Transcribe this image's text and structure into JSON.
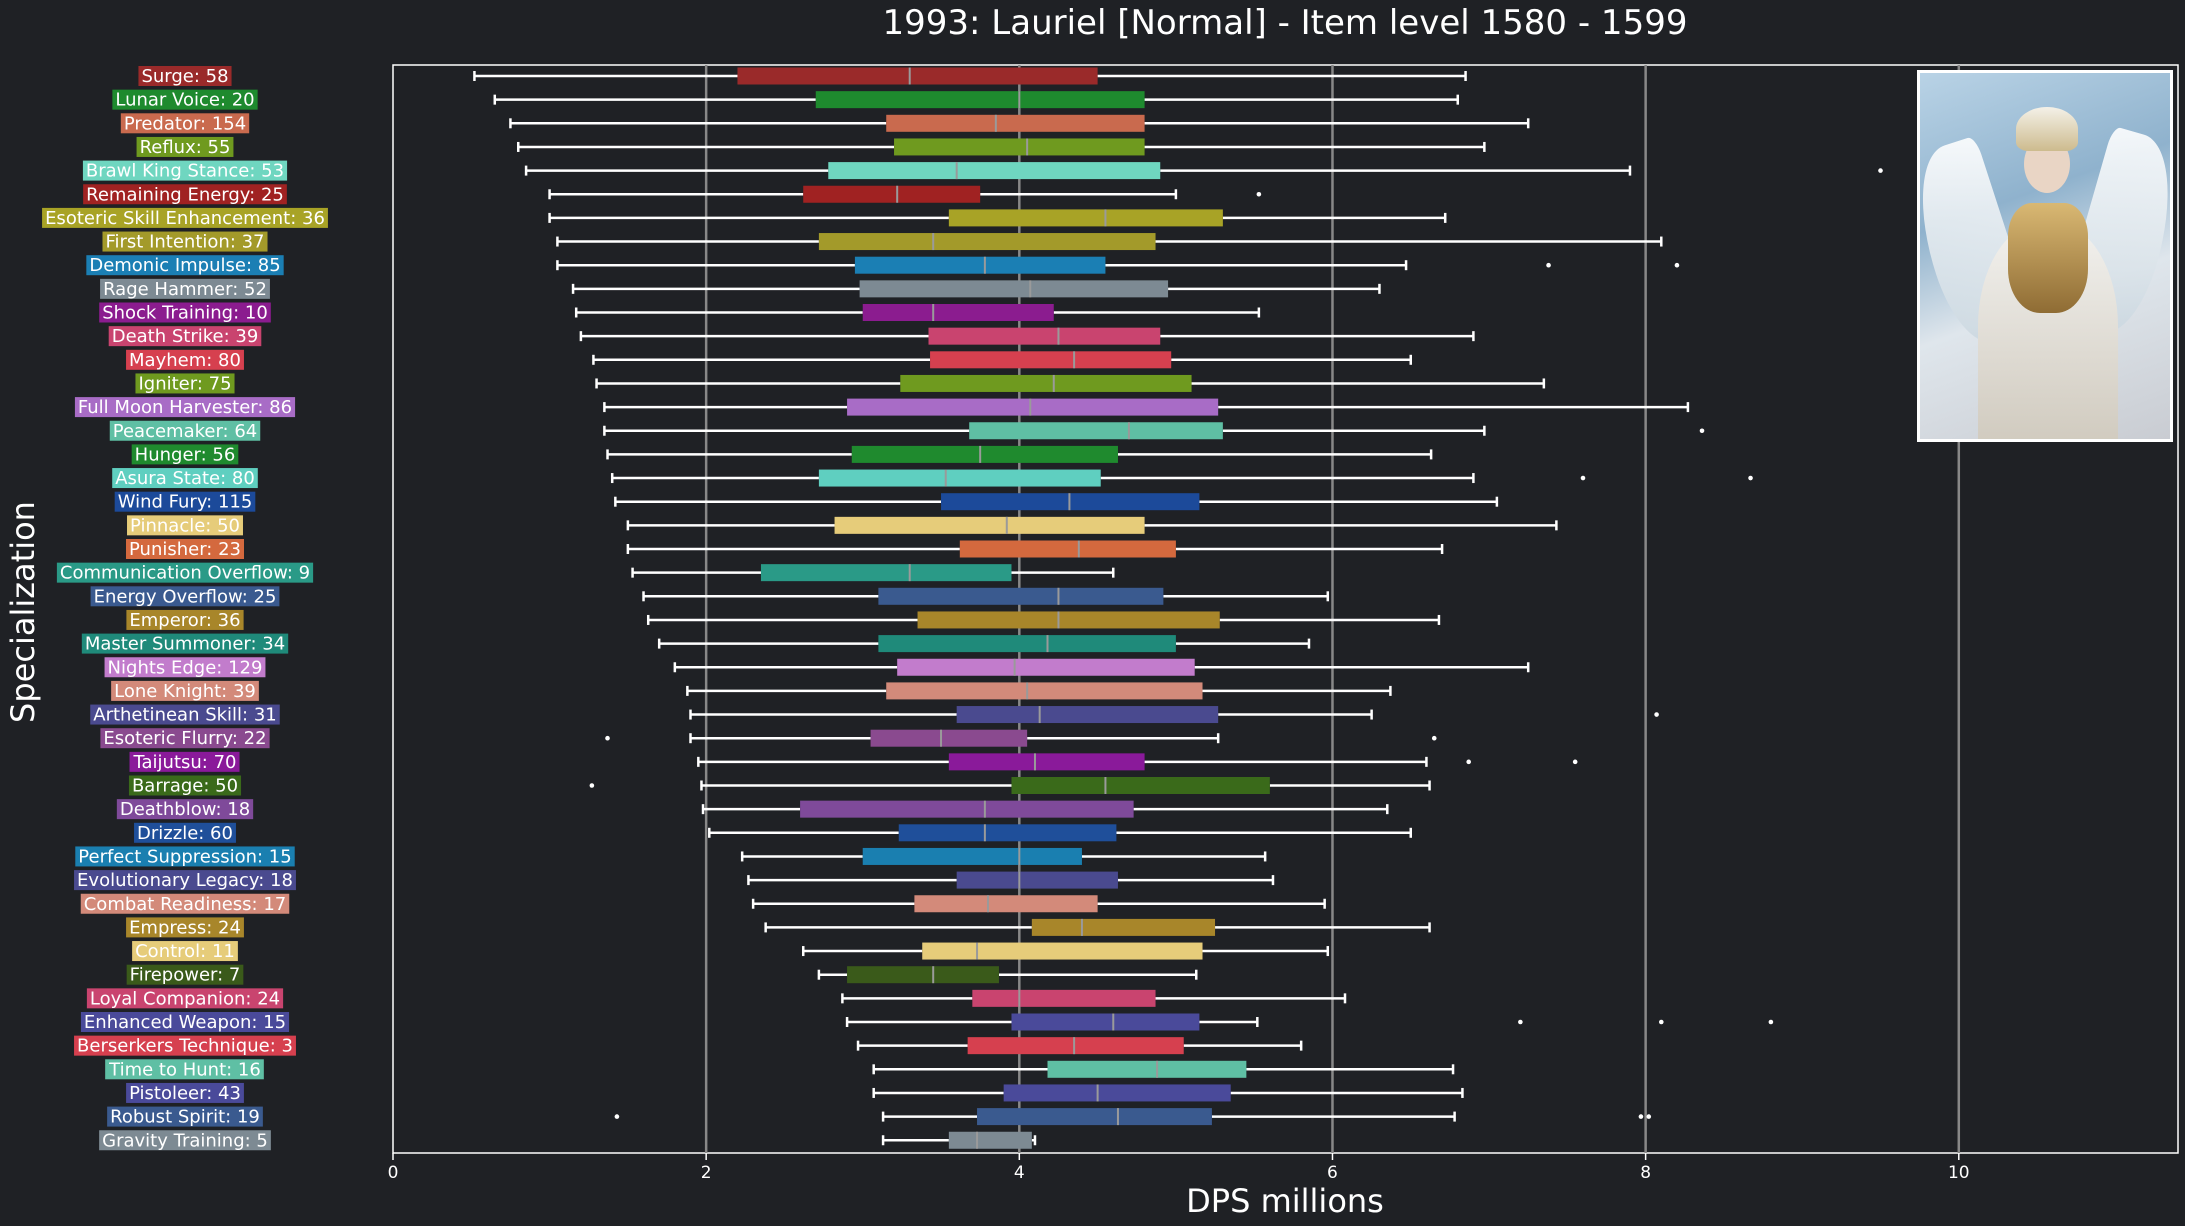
{
  "colors": {
    "background": "#1f2125",
    "axes_frame": "#ffffff",
    "text": "#ffffff",
    "whisker": "#ffffff",
    "median_line": "#9a9a9a",
    "vline": "#888888"
  },
  "chart_data": {
    "type": "box",
    "title": "1993: Lauriel [Normal] - Item level 1580 - 1599",
    "xlabel": "DPS millions",
    "ylabel": "Specialization",
    "xlim": [
      0,
      11.4
    ],
    "xticks": [
      0,
      2,
      4,
      6,
      8,
      10
    ],
    "xtick_labels": [
      "0",
      "2",
      "4",
      "6",
      "8",
      "10"
    ],
    "reference_lines": [
      2,
      4,
      6,
      8,
      10
    ],
    "grid": false,
    "image_inset": "character portrait, top-right",
    "series": [
      {
        "label": "Surge: 58",
        "color": "#9a2a2a",
        "min": 0.52,
        "q1": 2.2,
        "median": 3.3,
        "q3": 4.5,
        "max": 6.85,
        "outliers": []
      },
      {
        "label": "Lunar Voice: 20",
        "color": "#1e8a2e",
        "min": 0.65,
        "q1": 2.7,
        "median": 4.0,
        "q3": 4.8,
        "max": 6.8,
        "outliers": []
      },
      {
        "label": "Predator: 154",
        "color": "#c96a4e",
        "min": 0.75,
        "q1": 3.15,
        "median": 3.85,
        "q3": 4.8,
        "max": 7.25,
        "outliers": []
      },
      {
        "label": "Reflux: 55",
        "color": "#6f9a1f",
        "min": 0.8,
        "q1": 3.2,
        "median": 4.05,
        "q3": 4.8,
        "max": 6.97,
        "outliers": []
      },
      {
        "label": "Brawl King Stance: 53",
        "color": "#6fd6c0",
        "min": 0.85,
        "q1": 2.78,
        "median": 3.6,
        "q3": 4.9,
        "max": 7.9,
        "outliers": [
          9.5
        ]
      },
      {
        "label": "Remaining Energy: 25",
        "color": "#a02222",
        "min": 1.0,
        "q1": 2.62,
        "median": 3.22,
        "q3": 3.75,
        "max": 5.0,
        "outliers": [
          5.53
        ]
      },
      {
        "label": "Esoteric Skill Enhancement: 36",
        "color": "#a8a326",
        "min": 1.0,
        "q1": 3.55,
        "median": 4.55,
        "q3": 5.3,
        "max": 6.72,
        "outliers": []
      },
      {
        "label": "First Intention: 37",
        "color": "#a39a2a",
        "min": 1.05,
        "q1": 2.72,
        "median": 3.45,
        "q3": 4.87,
        "max": 8.1,
        "outliers": []
      },
      {
        "label": "Demonic Impulse: 85",
        "color": "#1b7fb4",
        "min": 1.05,
        "q1": 2.95,
        "median": 3.78,
        "q3": 4.55,
        "max": 6.47,
        "outliers": [
          7.38,
          8.2
        ]
      },
      {
        "label": "Rage Hammer: 52",
        "color": "#7d8a93",
        "min": 1.15,
        "q1": 2.98,
        "median": 4.07,
        "q3": 4.95,
        "max": 6.3,
        "outliers": []
      },
      {
        "label": "Shock Training: 10",
        "color": "#8b1c8f",
        "min": 1.17,
        "q1": 3.0,
        "median": 3.45,
        "q3": 4.22,
        "max": 5.53,
        "outliers": []
      },
      {
        "label": "Death Strike: 39",
        "color": "#c9446f",
        "min": 1.2,
        "q1": 3.42,
        "median": 4.25,
        "q3": 4.9,
        "max": 6.9,
        "outliers": []
      },
      {
        "label": "Mayhem: 80",
        "color": "#d6404f",
        "min": 1.28,
        "q1": 3.43,
        "median": 4.35,
        "q3": 4.97,
        "max": 6.5,
        "outliers": []
      },
      {
        "label": "Igniter: 75",
        "color": "#6f9a1f",
        "min": 1.3,
        "q1": 3.24,
        "median": 4.22,
        "q3": 5.1,
        "max": 7.35,
        "outliers": []
      },
      {
        "label": "Full Moon Harvester: 86",
        "color": "#a86cc6",
        "min": 1.35,
        "q1": 2.9,
        "median": 4.07,
        "q3": 5.27,
        "max": 8.27,
        "outliers": []
      },
      {
        "label": "Peacemaker: 64",
        "color": "#5fbfa4",
        "min": 1.35,
        "q1": 3.68,
        "median": 4.7,
        "q3": 5.3,
        "max": 6.97,
        "outliers": [
          8.36
        ]
      },
      {
        "label": "Hunger: 56",
        "color": "#1f8a2e",
        "min": 1.37,
        "q1": 2.93,
        "median": 3.75,
        "q3": 4.63,
        "max": 6.63,
        "outliers": []
      },
      {
        "label": "Asura State: 80",
        "color": "#5fcfc0",
        "min": 1.4,
        "q1": 2.72,
        "median": 3.53,
        "q3": 4.52,
        "max": 6.9,
        "outliers": [
          7.6,
          8.67
        ]
      },
      {
        "label": "Wind Fury: 115",
        "color": "#1c4a9a",
        "min": 1.42,
        "q1": 3.5,
        "median": 4.32,
        "q3": 5.15,
        "max": 7.05,
        "outliers": []
      },
      {
        "label": "Pinnacle: 50",
        "color": "#e6cc7a",
        "min": 1.5,
        "q1": 2.82,
        "median": 3.92,
        "q3": 4.8,
        "max": 7.43,
        "outliers": []
      },
      {
        "label": "Punisher: 23",
        "color": "#d4693e",
        "min": 1.5,
        "q1": 3.62,
        "median": 4.38,
        "q3": 5.0,
        "max": 6.7,
        "outliers": []
      },
      {
        "label": "Communication Overflow: 9",
        "color": "#2a9a87",
        "min": 1.53,
        "q1": 2.35,
        "median": 3.3,
        "q3": 3.95,
        "max": 4.6,
        "outliers": []
      },
      {
        "label": "Energy Overflow: 25",
        "color": "#3a5a8f",
        "min": 1.6,
        "q1": 3.1,
        "median": 4.25,
        "q3": 4.92,
        "max": 5.97,
        "outliers": []
      },
      {
        "label": "Emperor: 36",
        "color": "#a8862a",
        "min": 1.63,
        "q1": 3.35,
        "median": 4.25,
        "q3": 5.28,
        "max": 6.68,
        "outliers": []
      },
      {
        "label": "Master Summoner: 34",
        "color": "#1f8a7a",
        "min": 1.7,
        "q1": 3.1,
        "median": 4.18,
        "q3": 5.0,
        "max": 5.85,
        "outliers": []
      },
      {
        "label": "Nights Edge: 129",
        "color": "#c27ccc",
        "min": 1.8,
        "q1": 3.22,
        "median": 3.97,
        "q3": 5.12,
        "max": 7.25,
        "outliers": []
      },
      {
        "label": "Lone Knight: 39",
        "color": "#d38a7a",
        "min": 1.88,
        "q1": 3.15,
        "median": 4.05,
        "q3": 5.17,
        "max": 6.37,
        "outliers": []
      },
      {
        "label": "Arthetinean Skill: 31",
        "color": "#4a4a8f",
        "min": 1.9,
        "q1": 3.6,
        "median": 4.13,
        "q3": 5.27,
        "max": 6.25,
        "outliers": [
          8.07
        ]
      },
      {
        "label": "Esoteric Flurry: 22",
        "color": "#8a4a8f",
        "min": 1.9,
        "q1": 3.05,
        "median": 3.5,
        "q3": 4.05,
        "max": 5.27,
        "outliers": [
          1.37,
          6.65
        ]
      },
      {
        "label": "Taijutsu: 70",
        "color": "#8a1a9a",
        "min": 1.95,
        "q1": 3.55,
        "median": 4.1,
        "q3": 4.8,
        "max": 6.6,
        "outliers": [
          6.87,
          7.55
        ]
      },
      {
        "label": "Barrage: 50",
        "color": "#3a6a1a",
        "min": 1.97,
        "q1": 3.95,
        "median": 4.55,
        "q3": 5.6,
        "max": 6.62,
        "outliers": [
          1.27
        ]
      },
      {
        "label": "Deathblow: 18",
        "color": "#7f4a9a",
        "min": 1.98,
        "q1": 2.6,
        "median": 3.78,
        "q3": 4.73,
        "max": 6.35,
        "outliers": []
      },
      {
        "label": "Drizzle: 60",
        "color": "#1f4f9a",
        "min": 2.02,
        "q1": 3.23,
        "median": 3.78,
        "q3": 4.62,
        "max": 6.5,
        "outliers": []
      },
      {
        "label": "Perfect Suppression: 15",
        "color": "#1a7fb0",
        "min": 2.23,
        "q1": 3.0,
        "median": 4.0,
        "q3": 4.4,
        "max": 5.57,
        "outliers": []
      },
      {
        "label": "Evolutionary Legacy: 18",
        "color": "#4a4a8f",
        "min": 2.27,
        "q1": 3.6,
        "median": 4.0,
        "q3": 4.63,
        "max": 5.62,
        "outliers": []
      },
      {
        "label": "Combat Readiness: 17",
        "color": "#d38a7a",
        "min": 2.3,
        "q1": 3.33,
        "median": 3.8,
        "q3": 4.5,
        "max": 5.95,
        "outliers": []
      },
      {
        "label": "Empress: 24",
        "color": "#a8862a",
        "min": 2.38,
        "q1": 4.08,
        "median": 4.4,
        "q3": 5.25,
        "max": 6.62,
        "outliers": []
      },
      {
        "label": "Control: 11",
        "color": "#e6cc7a",
        "min": 2.62,
        "q1": 3.38,
        "median": 3.73,
        "q3": 5.17,
        "max": 5.97,
        "outliers": []
      },
      {
        "label": "Firepower: 7",
        "color": "#3a5a1a",
        "min": 2.72,
        "q1": 2.9,
        "median": 3.45,
        "q3": 3.87,
        "max": 5.13,
        "outliers": []
      },
      {
        "label": "Loyal Companion: 24",
        "color": "#c9446f",
        "min": 2.87,
        "q1": 3.7,
        "median": 4.0,
        "q3": 4.87,
        "max": 6.08,
        "outliers": []
      },
      {
        "label": "Enhanced Weapon: 15",
        "color": "#4a4a9a",
        "min": 2.9,
        "q1": 3.95,
        "median": 4.6,
        "q3": 5.15,
        "max": 5.52,
        "outliers": [
          7.2,
          8.1,
          8.8
        ]
      },
      {
        "label": "Berserkers Technique: 3",
        "color": "#d6404f",
        "min": 2.97,
        "q1": 3.67,
        "median": 4.35,
        "q3": 5.05,
        "max": 5.8,
        "outliers": []
      },
      {
        "label": "Time to Hunt: 16",
        "color": "#5fbfa4",
        "min": 3.07,
        "q1": 4.18,
        "median": 4.88,
        "q3": 5.45,
        "max": 6.77,
        "outliers": []
      },
      {
        "label": "Pistoleer: 43",
        "color": "#4a4a9a",
        "min": 3.07,
        "q1": 3.9,
        "median": 4.5,
        "q3": 5.35,
        "max": 6.83,
        "outliers": []
      },
      {
        "label": "Robust Spirit: 19",
        "color": "#3a5a8f",
        "min": 3.13,
        "q1": 3.73,
        "median": 4.63,
        "q3": 5.23,
        "max": 6.78,
        "outliers": [
          1.43,
          7.97,
          8.02
        ]
      },
      {
        "label": "Gravity Training: 5",
        "color": "#7d8a93",
        "min": 3.13,
        "q1": 3.55,
        "median": 3.73,
        "q3": 4.08,
        "max": 4.1,
        "outliers": []
      }
    ]
  }
}
